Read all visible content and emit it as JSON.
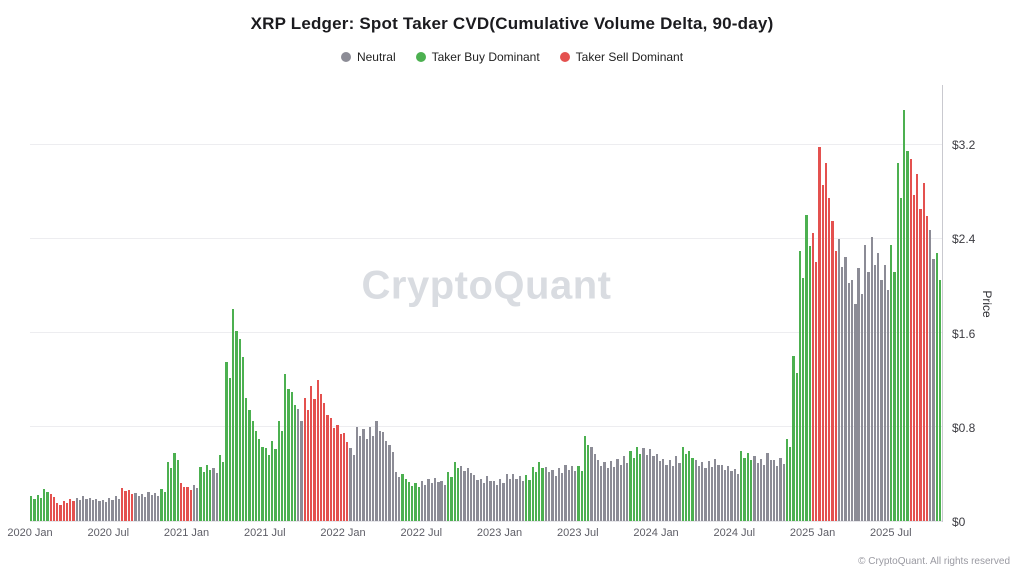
{
  "title": "XRP Ledger: Spot Taker CVD(Cumulative Volume Delta, 90-day)",
  "watermark": "CryptoQuant",
  "copyright": "© CryptoQuant. All rights reserved",
  "legend": [
    {
      "key": "n",
      "label": "Neutral",
      "color": "#8c8c96"
    },
    {
      "key": "g",
      "label": "Taker Buy Dominant",
      "color": "#4cb050"
    },
    {
      "key": "r",
      "label": "Taker Sell Dominant",
      "color": "#e4514f"
    }
  ],
  "chart_data": {
    "type": "bar",
    "title": "XRP Ledger: Spot Taker CVD(Cumulative Volume Delta, 90-day)",
    "xlabel": "",
    "ylabel": "Price",
    "grid": true,
    "legend_position": "top",
    "y_max": 3.71,
    "y_ticks": [
      {
        "label": "$0",
        "value": 0
      },
      {
        "label": "$0.8",
        "value": 0.8
      },
      {
        "label": "$1.6",
        "value": 1.6
      },
      {
        "label": "$2.4",
        "value": 2.4
      },
      {
        "label": "$3.2",
        "value": 3.2
      }
    ],
    "x_ticks": [
      "2020 Jan",
      "2020 Jul",
      "2021 Jan",
      "2021 Jul",
      "2022 Jan",
      "2022 Jul",
      "2023 Jan",
      "2023 Jul",
      "2024 Jan",
      "2024 Jul",
      "2025 Jan",
      "2025 Jul"
    ],
    "x_tick_interval_months": 6,
    "total_months": 70,
    "points_per_month": 2,
    "series_name": "XRP price colored by taker CVD regime (n=neutral, g=taker buy dominant, r=taker sell dominant)",
    "points": [
      [
        0.21,
        "g"
      ],
      [
        0.22,
        "g"
      ],
      [
        0.27,
        "g"
      ],
      [
        0.23,
        "r"
      ],
      [
        0.15,
        "r"
      ],
      [
        0.17,
        "r"
      ],
      [
        0.19,
        "r"
      ],
      [
        0.2,
        "n"
      ],
      [
        0.21,
        "n"
      ],
      [
        0.2,
        "n"
      ],
      [
        0.19,
        "n"
      ],
      [
        0.18,
        "n"
      ],
      [
        0.2,
        "n"
      ],
      [
        0.21,
        "n"
      ],
      [
        0.28,
        "r"
      ],
      [
        0.26,
        "r"
      ],
      [
        0.24,
        "n"
      ],
      [
        0.23,
        "n"
      ],
      [
        0.25,
        "n"
      ],
      [
        0.24,
        "n"
      ],
      [
        0.27,
        "g"
      ],
      [
        0.5,
        "g"
      ],
      [
        0.58,
        "g"
      ],
      [
        0.32,
        "r"
      ],
      [
        0.29,
        "r"
      ],
      [
        0.31,
        "n"
      ],
      [
        0.46,
        "g"
      ],
      [
        0.48,
        "g"
      ],
      [
        0.45,
        "n"
      ],
      [
        0.56,
        "g"
      ],
      [
        1.35,
        "g"
      ],
      [
        1.8,
        "g"
      ],
      [
        1.55,
        "g"
      ],
      [
        1.05,
        "g"
      ],
      [
        0.85,
        "g"
      ],
      [
        0.7,
        "g"
      ],
      [
        0.62,
        "g"
      ],
      [
        0.68,
        "g"
      ],
      [
        0.85,
        "g"
      ],
      [
        1.25,
        "g"
      ],
      [
        1.1,
        "g"
      ],
      [
        0.95,
        "n"
      ],
      [
        1.05,
        "r"
      ],
      [
        1.15,
        "r"
      ],
      [
        1.2,
        "r"
      ],
      [
        1.0,
        "r"
      ],
      [
        0.88,
        "r"
      ],
      [
        0.82,
        "r"
      ],
      [
        0.75,
        "r"
      ],
      [
        0.62,
        "n"
      ],
      [
        0.8,
        "n"
      ],
      [
        0.78,
        "n"
      ],
      [
        0.8,
        "n"
      ],
      [
        0.85,
        "n"
      ],
      [
        0.76,
        "n"
      ],
      [
        0.65,
        "n"
      ],
      [
        0.42,
        "n"
      ],
      [
        0.4,
        "g"
      ],
      [
        0.33,
        "g"
      ],
      [
        0.32,
        "g"
      ],
      [
        0.34,
        "n"
      ],
      [
        0.36,
        "n"
      ],
      [
        0.37,
        "n"
      ],
      [
        0.34,
        "n"
      ],
      [
        0.42,
        "g"
      ],
      [
        0.5,
        "g"
      ],
      [
        0.47,
        "n"
      ],
      [
        0.45,
        "n"
      ],
      [
        0.39,
        "n"
      ],
      [
        0.36,
        "n"
      ],
      [
        0.38,
        "n"
      ],
      [
        0.34,
        "n"
      ],
      [
        0.36,
        "n"
      ],
      [
        0.4,
        "n"
      ],
      [
        0.4,
        "n"
      ],
      [
        0.38,
        "n"
      ],
      [
        0.39,
        "g"
      ],
      [
        0.46,
        "g"
      ],
      [
        0.5,
        "g"
      ],
      [
        0.46,
        "n"
      ],
      [
        0.43,
        "n"
      ],
      [
        0.45,
        "n"
      ],
      [
        0.48,
        "n"
      ],
      [
        0.47,
        "n"
      ],
      [
        0.47,
        "g"
      ],
      [
        0.72,
        "g"
      ],
      [
        0.63,
        "n"
      ],
      [
        0.52,
        "n"
      ],
      [
        0.5,
        "n"
      ],
      [
        0.51,
        "n"
      ],
      [
        0.53,
        "n"
      ],
      [
        0.55,
        "n"
      ],
      [
        0.6,
        "g"
      ],
      [
        0.63,
        "g"
      ],
      [
        0.62,
        "n"
      ],
      [
        0.61,
        "n"
      ],
      [
        0.57,
        "n"
      ],
      [
        0.53,
        "n"
      ],
      [
        0.52,
        "n"
      ],
      [
        0.55,
        "n"
      ],
      [
        0.63,
        "g"
      ],
      [
        0.6,
        "g"
      ],
      [
        0.52,
        "n"
      ],
      [
        0.5,
        "n"
      ],
      [
        0.51,
        "n"
      ],
      [
        0.53,
        "n"
      ],
      [
        0.48,
        "n"
      ],
      [
        0.47,
        "n"
      ],
      [
        0.44,
        "n"
      ],
      [
        0.6,
        "g"
      ],
      [
        0.58,
        "g"
      ],
      [
        0.55,
        "n"
      ],
      [
        0.53,
        "n"
      ],
      [
        0.58,
        "n"
      ],
      [
        0.52,
        "n"
      ],
      [
        0.54,
        "n"
      ],
      [
        0.7,
        "g"
      ],
      [
        1.4,
        "g"
      ],
      [
        2.3,
        "g"
      ],
      [
        2.6,
        "g"
      ],
      [
        2.45,
        "r"
      ],
      [
        3.18,
        "r"
      ],
      [
        3.05,
        "r"
      ],
      [
        2.55,
        "r"
      ],
      [
        2.4,
        "n"
      ],
      [
        2.25,
        "n"
      ],
      [
        2.05,
        "n"
      ],
      [
        2.15,
        "n"
      ],
      [
        2.35,
        "n"
      ],
      [
        2.42,
        "n"
      ],
      [
        2.28,
        "n"
      ],
      [
        2.18,
        "n"
      ],
      [
        2.35,
        "g"
      ],
      [
        3.05,
        "g"
      ],
      [
        3.5,
        "g"
      ],
      [
        3.08,
        "r"
      ],
      [
        2.95,
        "r"
      ],
      [
        2.88,
        "r"
      ],
      [
        2.48,
        "n"
      ],
      [
        2.28,
        "g"
      ]
    ]
  }
}
